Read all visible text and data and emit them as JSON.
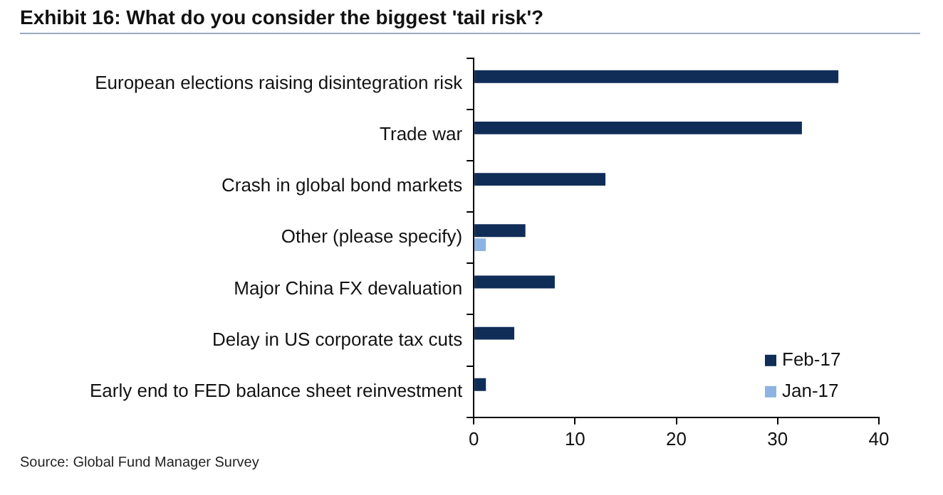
{
  "chart_data": {
    "type": "bar",
    "orientation": "horizontal",
    "title": "Exhibit 16: What do you consider the biggest 'tail risk'?",
    "categories": [
      "European elections raising disintegration risk",
      "Trade war",
      "Crash in global bond markets",
      "Other (please specify)",
      "Major China FX devaluation",
      "Delay in US corporate tax cuts",
      "Early end to FED balance sheet reinvestment"
    ],
    "series": [
      {
        "name": "Feb-17",
        "color": "#0f2d57",
        "values": [
          36,
          32.4,
          13,
          5.1,
          8,
          4,
          1.2
        ]
      },
      {
        "name": "Jan-17",
        "color": "#8db3e2",
        "values": [
          null,
          null,
          null,
          1.2,
          null,
          null,
          null
        ]
      }
    ],
    "xlim": [
      0,
      40
    ],
    "xticks": [
      0,
      10,
      20,
      30,
      40
    ],
    "grid": false,
    "legend": "bottom right",
    "annotations": [
      "Source: Global Fund Manager Survey"
    ]
  }
}
